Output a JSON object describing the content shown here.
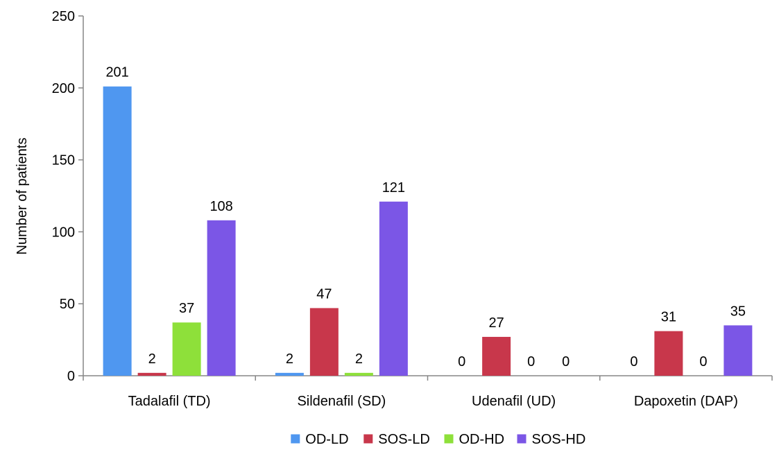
{
  "chart_data": {
    "type": "bar",
    "title": "",
    "xlabel": "",
    "ylabel": "Number of patients",
    "ylim": [
      0,
      250
    ],
    "yticks": [
      0,
      50,
      100,
      150,
      200,
      250
    ],
    "grid": false,
    "legend_position": "bottom",
    "categories": [
      "Tadalafil (TD)",
      "Sildenafil (SD)",
      "Udenafil (UD)",
      "Dapoxetin (DAP)"
    ],
    "series": [
      {
        "name": "OD-LD",
        "color": "#4f97f0",
        "values": [
          201,
          2,
          0,
          0
        ]
      },
      {
        "name": "SOS-LD",
        "color": "#c8374b",
        "values": [
          2,
          47,
          27,
          31
        ]
      },
      {
        "name": "OD-HD",
        "color": "#8ee03a",
        "values": [
          37,
          2,
          0,
          0
        ]
      },
      {
        "name": "SOS-HD",
        "color": "#7b56e6",
        "values": [
          108,
          121,
          0,
          35
        ]
      }
    ]
  }
}
